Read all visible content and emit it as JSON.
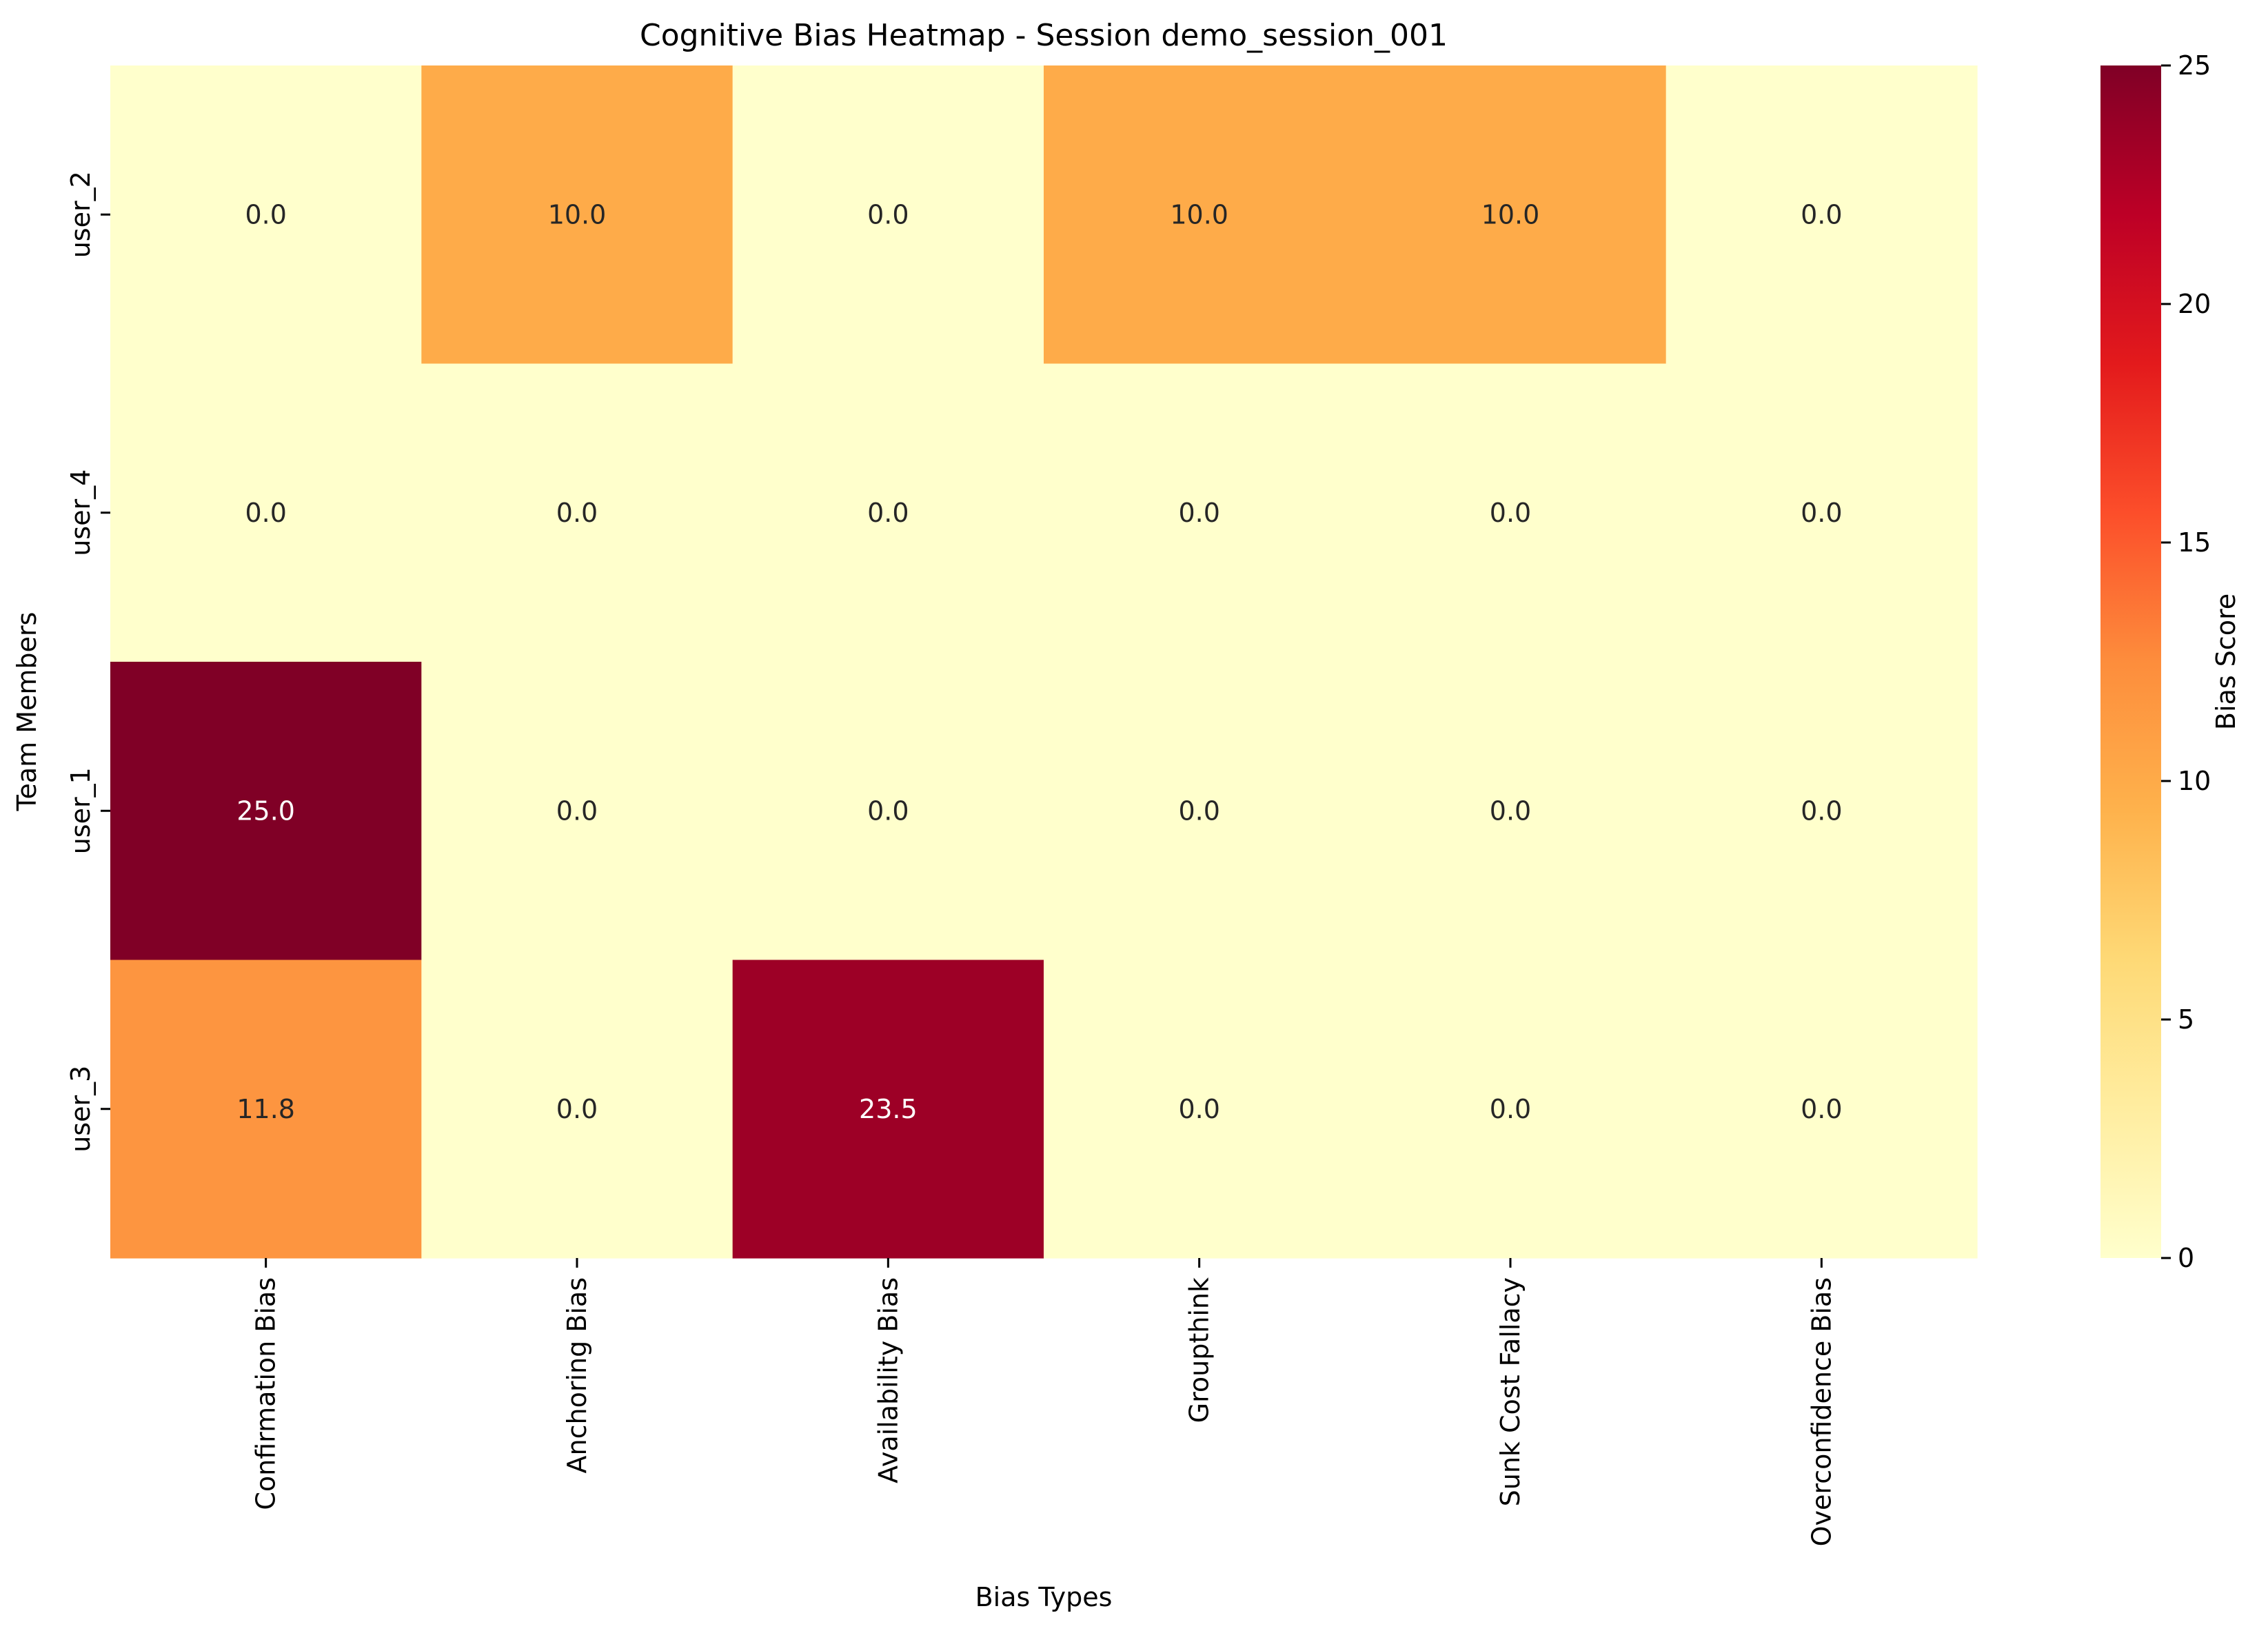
{
  "chart_data": {
    "type": "heatmap",
    "title": "Cognitive Bias Heatmap - Session demo_session_001",
    "xlabel": "Bias Types",
    "ylabel": "Team Members",
    "x_categories": [
      "Confirmation Bias",
      "Anchoring Bias",
      "Availability Bias",
      "Groupthink",
      "Sunk Cost Fallacy",
      "Overconfidence Bias"
    ],
    "y_categories": [
      "user_2",
      "user_4",
      "user_1",
      "user_3"
    ],
    "values": [
      [
        0.0,
        10.0,
        0.0,
        10.0,
        10.0,
        0.0
      ],
      [
        0.0,
        0.0,
        0.0,
        0.0,
        0.0,
        0.0
      ],
      [
        25.0,
        0.0,
        0.0,
        0.0,
        0.0,
        0.0
      ],
      [
        11.8,
        0.0,
        23.5,
        0.0,
        0.0,
        0.0
      ]
    ],
    "value_labels": [
      [
        "0.0",
        "10.0",
        "0.0",
        "10.0",
        "10.0",
        "0.0"
      ],
      [
        "0.0",
        "0.0",
        "0.0",
        "0.0",
        "0.0",
        "0.0"
      ],
      [
        "25.0",
        "0.0",
        "0.0",
        "0.0",
        "0.0",
        "0.0"
      ],
      [
        "11.8",
        "0.0",
        "23.5",
        "0.0",
        "0.0",
        "0.0"
      ]
    ],
    "colorbar": {
      "label": "Bias Score",
      "range": [
        0,
        25
      ],
      "ticks": [
        0,
        5,
        10,
        15,
        20,
        25
      ],
      "tick_labels": [
        "0",
        "5",
        "10",
        "15",
        "20",
        "25"
      ],
      "colormap": "YlOrRd",
      "colors": [
        "#ffffcc",
        "#ffeda0",
        "#fed976",
        "#feb24c",
        "#fd8d3c",
        "#fc4e2a",
        "#e31a1c",
        "#bd0026",
        "#800026"
      ]
    },
    "grid": false
  }
}
